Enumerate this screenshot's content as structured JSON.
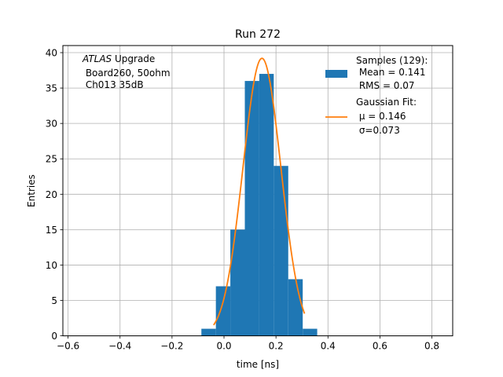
{
  "chart_data": {
    "type": "bar",
    "title": "Run 272",
    "xlabel": "time [ns]",
    "ylabel": "Entries",
    "xlim": [
      -0.62,
      0.88
    ],
    "ylim": [
      0,
      41
    ],
    "grid": true,
    "xticks": [
      "−0.6",
      "−0.4",
      "−0.2",
      "0.0",
      "0.2",
      "0.4",
      "0.6",
      "0.8"
    ],
    "xtick_values": [
      -0.6,
      -0.4,
      -0.2,
      0.0,
      0.2,
      0.4,
      0.6,
      0.8
    ],
    "yticks": [
      "0",
      "5",
      "10",
      "15",
      "20",
      "25",
      "30",
      "35",
      "40"
    ],
    "ytick_values": [
      0,
      5,
      10,
      15,
      20,
      25,
      30,
      35,
      40
    ],
    "histogram": {
      "color": "#1f77b4",
      "bin_edges": [
        -0.087,
        -0.0313,
        0.0244,
        0.0801,
        0.1358,
        0.1915,
        0.2472,
        0.3029,
        0.3586
      ],
      "counts": [
        1,
        7,
        15,
        36,
        37,
        24,
        8,
        1
      ]
    },
    "fit": {
      "color": "#ff7f0e",
      "mu": 0.146,
      "sigma": 0.073,
      "amplitude": 39.2,
      "x_range": [
        -0.04,
        0.31
      ]
    },
    "annotation": {
      "italic": "ATLAS",
      "line1_rest": " Upgrade",
      "line2": " Board260, 50ohm",
      "line3": " Ch013 35dB"
    },
    "legend": {
      "position": "upper right",
      "samples_title": "Samples (129):",
      "samples_mean": " Mean = 0.141",
      "samples_rms": " RMS = 0.07",
      "fit_title": "Gaussian Fit:",
      "fit_mu": " μ = 0.146",
      "fit_sigma": " σ=0.073"
    }
  }
}
